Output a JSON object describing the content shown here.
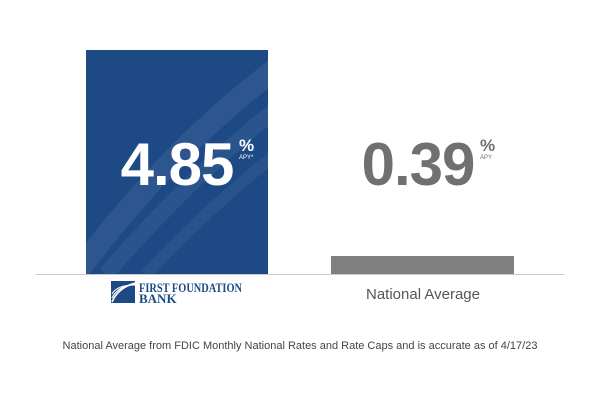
{
  "chart_data": {
    "type": "bar",
    "categories": [
      "First Foundation Bank",
      "National Average"
    ],
    "values": [
      4.85,
      0.39
    ],
    "value_labels": [
      "4.85",
      "0.39"
    ],
    "unit_symbol": "%",
    "unit_labels": [
      "APY*",
      "APY"
    ],
    "bar_colors": [
      "#1d4a85",
      "#808080"
    ],
    "value_label_colors": [
      "#ffffff",
      "#707070"
    ],
    "ylim": [
      0,
      5.5
    ],
    "grid": false,
    "title": "",
    "xlabel": "",
    "ylabel": ""
  },
  "logo": {
    "line1": "FIRST FOUNDATION",
    "line2": "BANK",
    "color": "#1d4a85"
  },
  "category_label_2": "National Average",
  "footnote": "National Average from FDIC Monthly National Rates and Rate Caps and is accurate as of 4/17/23",
  "colors": {
    "baseline": "#c8c8c8",
    "background": "#ffffff"
  }
}
